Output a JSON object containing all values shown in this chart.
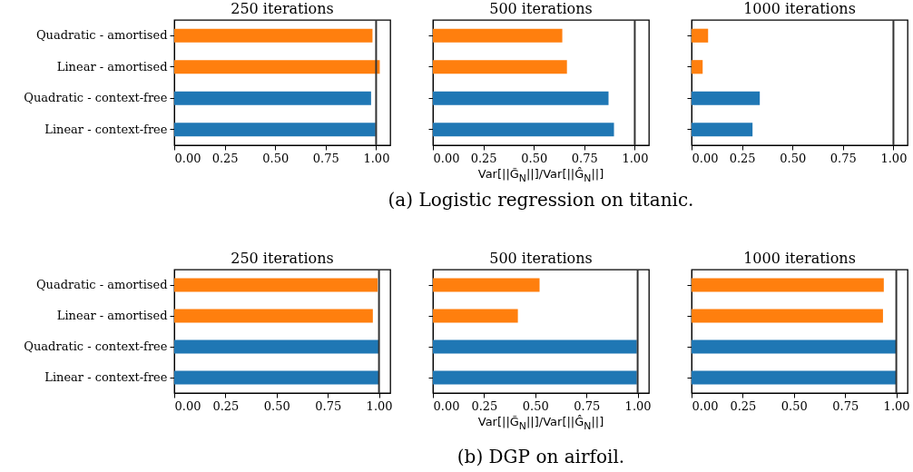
{
  "chart_data": [
    {
      "type": "bar",
      "orientation": "horizontal",
      "title": "250 iterations",
      "categories": [
        "Quadratic - amortised",
        "Linear - amortised",
        "Quadratic - context-free",
        "Linear - context-free"
      ],
      "values": [
        0.982,
        1.018,
        0.975,
        0.997
      ],
      "colors": [
        "#ff7f0e",
        "#ff7f0e",
        "#1f77b4",
        "#1f77b4"
      ],
      "xlim": [
        0,
        1.07
      ],
      "xticks": [
        {
          "value": 0,
          "label": "0.00"
        },
        {
          "value": 0.25,
          "label": "0.25"
        },
        {
          "value": 0.5,
          "label": "0.50"
        },
        {
          "value": 0.75,
          "label": "0.75"
        },
        {
          "value": 1,
          "label": "1.00"
        }
      ],
      "ref_lines": [
        {
          "axis": "x",
          "value": 1,
          "color": "#333333"
        }
      ]
    },
    {
      "type": "bar",
      "orientation": "horizontal",
      "title": "500 iterations",
      "xlabel": "Var[||G̃$_{N}$||]/Var[||Ĝ$_{N}$||]",
      "categories": [
        null,
        null,
        null,
        null
      ],
      "values": [
        0.641,
        0.664,
        0.87,
        0.897
      ],
      "colors": [
        "#ff7f0e",
        "#ff7f0e",
        "#1f77b4",
        "#1f77b4"
      ],
      "xlim": [
        0,
        1.07
      ],
      "xticks": [
        {
          "value": 0,
          "label": "0.00"
        },
        {
          "value": 0.25,
          "label": "0.25"
        },
        {
          "value": 0.5,
          "label": "0.50"
        },
        {
          "value": 0.75,
          "label": "0.75"
        },
        {
          "value": 1,
          "label": "1.00"
        }
      ],
      "ref_lines": [
        {
          "axis": "x",
          "value": 1,
          "color": "#333333"
        }
      ],
      "annotations": [
        "(a) Logistic regression on titanic."
      ]
    },
    {
      "type": "bar",
      "orientation": "horizontal",
      "title": "1000 iterations",
      "categories": [
        null,
        null,
        null,
        null
      ],
      "values": [
        0.082,
        0.055,
        0.338,
        0.302
      ],
      "colors": [
        "#ff7f0e",
        "#ff7f0e",
        "#1f77b4",
        "#1f77b4"
      ],
      "xlim": [
        0,
        1.07
      ],
      "xticks": [
        {
          "value": 0,
          "label": "0.00"
        },
        {
          "value": 0.25,
          "label": "0.25"
        },
        {
          "value": 0.5,
          "label": "0.50"
        },
        {
          "value": 0.75,
          "label": "0.75"
        },
        {
          "value": 1,
          "label": "1.00"
        }
      ],
      "ref_lines": [
        {
          "axis": "x",
          "value": 1,
          "color": "#333333"
        }
      ]
    },
    {
      "type": "bar",
      "orientation": "horizontal",
      "title": "250 iterations",
      "categories": [
        "Quadratic - amortised",
        "Linear - amortised",
        "Quadratic - context-free",
        "Linear - context-free"
      ],
      "values": [
        0.993,
        0.97,
        1.0,
        1.0
      ],
      "colors": [
        "#ff7f0e",
        "#ff7f0e",
        "#1f77b4",
        "#1f77b4"
      ],
      "xlim": [
        0,
        1.055
      ],
      "xticks": [
        {
          "value": 0,
          "label": "0.00"
        },
        {
          "value": 0.25,
          "label": "0.25"
        },
        {
          "value": 0.5,
          "label": "0.50"
        },
        {
          "value": 0.75,
          "label": "0.75"
        },
        {
          "value": 1,
          "label": "1.00"
        }
      ],
      "ref_lines": [
        {
          "axis": "x",
          "value": 1,
          "color": "#333333"
        }
      ]
    },
    {
      "type": "bar",
      "orientation": "horizontal",
      "title": "500 iterations",
      "xlabel": "Var[||G̃$_{N}$||]/Var[||Ĝ$_{N}$||]",
      "categories": [
        null,
        null,
        null,
        null
      ],
      "values": [
        0.521,
        0.415,
        0.996,
        0.996
      ],
      "colors": [
        "#ff7f0e",
        "#ff7f0e",
        "#1f77b4",
        "#1f77b4"
      ],
      "xlim": [
        0,
        1.055
      ],
      "xticks": [
        {
          "value": 0,
          "label": "0.00"
        },
        {
          "value": 0.25,
          "label": "0.25"
        },
        {
          "value": 0.5,
          "label": "0.50"
        },
        {
          "value": 0.75,
          "label": "0.75"
        },
        {
          "value": 1,
          "label": "1.00"
        }
      ],
      "ref_lines": [
        {
          "axis": "x",
          "value": 1,
          "color": "#333333"
        }
      ],
      "annotations": [
        "(b) DGP on airfoil."
      ]
    },
    {
      "type": "bar",
      "orientation": "horizontal",
      "title": "1000 iterations",
      "categories": [
        null,
        null,
        null,
        null
      ],
      "values": [
        0.939,
        0.935,
        1.0,
        1.0
      ],
      "colors": [
        "#ff7f0e",
        "#ff7f0e",
        "#1f77b4",
        "#1f77b4"
      ],
      "xlim": [
        0,
        1.055
      ],
      "xticks": [
        {
          "value": 0,
          "label": "0.00"
        },
        {
          "value": 0.25,
          "label": "0.25"
        },
        {
          "value": 0.5,
          "label": "0.50"
        },
        {
          "value": 0.75,
          "label": "0.75"
        },
        {
          "value": 1,
          "label": "1.00"
        }
      ],
      "ref_lines": [
        {
          "axis": "x",
          "value": 1,
          "color": "#333333"
        }
      ]
    }
  ]
}
